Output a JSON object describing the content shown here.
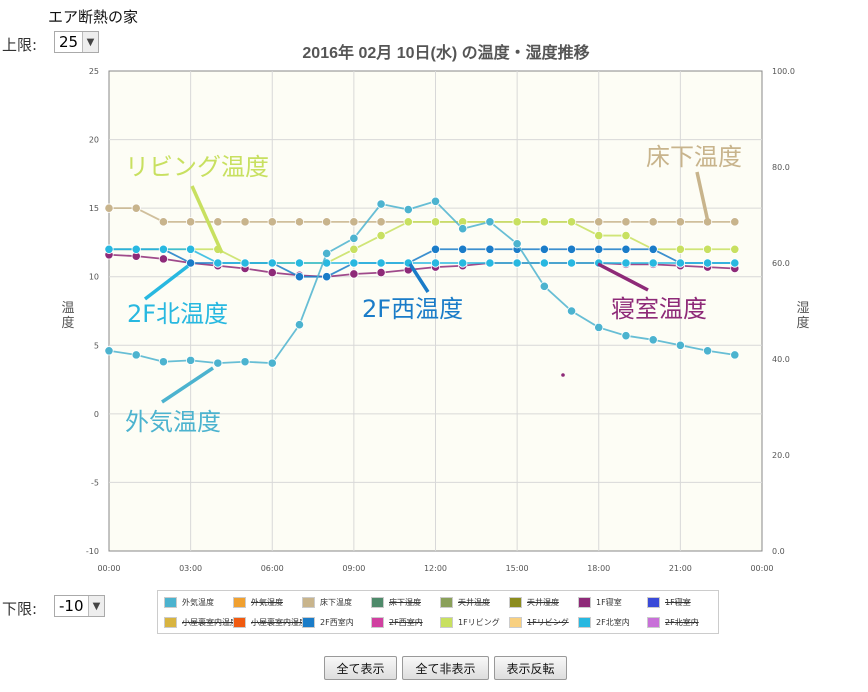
{
  "page_title": "エア断熱の家",
  "upper_limit": {
    "label": "上限:",
    "value": "25"
  },
  "lower_limit": {
    "label": "下限:",
    "value": "-10"
  },
  "buttons": {
    "show_all": "全て表示",
    "hide_all": "全て非表示",
    "invert": "表示反転"
  },
  "legend": [
    {
      "label": "外気温度",
      "color": "#4cb3cf",
      "visible": true
    },
    {
      "label": "外気湿度",
      "color": "#f0a030",
      "visible": false
    },
    {
      "label": "床下温度",
      "color": "#c8b48c",
      "visible": true
    },
    {
      "label": "床下湿度",
      "color": "#4e8a6a",
      "visible": false
    },
    {
      "label": "天井温度",
      "color": "#8aa05a",
      "visible": false
    },
    {
      "label": "天井湿度",
      "color": "#8c8c1e",
      "visible": false
    },
    {
      "label": "1F寝室",
      "color": "#8e2a78",
      "visible": true
    },
    {
      "label": "1F寝室",
      "color": "#3a4ad8",
      "visible": false
    },
    {
      "label": "小屋裏室内温度",
      "color": "#d8b440",
      "visible": false
    },
    {
      "label": "小屋裏室内湿度",
      "color": "#f05a10",
      "visible": false
    },
    {
      "label": "2F西室内",
      "color": "#1a7cc8",
      "visible": true
    },
    {
      "label": "2F西室内",
      "color": "#d040a0",
      "visible": false
    },
    {
      "label": "1Fリビング",
      "color": "#c8e060",
      "visible": true
    },
    {
      "label": "1Fリビング",
      "color": "#f8d080",
      "visible": false
    },
    {
      "label": "2F北室内",
      "color": "#28b8e0",
      "visible": true
    },
    {
      "label": "2F北室内",
      "color": "#c870d8",
      "visible": false
    }
  ],
  "annotations": [
    {
      "text": "リビング温度",
      "color": "#c8e060"
    },
    {
      "text": "床下温度",
      "color": "#c8b48c"
    },
    {
      "text": "2F北温度",
      "color": "#28b8e0"
    },
    {
      "text": "2F西温度",
      "color": "#1a7cc8"
    },
    {
      "text": "寝室温度",
      "color": "#8e2a78"
    },
    {
      "text": "外気温度",
      "color": "#4cb3cf"
    }
  ],
  "chart_data": {
    "type": "line",
    "title": "2016年 02月 10日(水) の温度・湿度推移",
    "ylabel": "温度",
    "y2label": "湿度",
    "ylim": [
      -10,
      25
    ],
    "y2lim": [
      0,
      100
    ],
    "yticks": [
      "25",
      "20",
      "15",
      "10",
      "5",
      "0",
      "-5",
      "-10"
    ],
    "y2ticks": [
      "100.0",
      "80.0",
      "60.0",
      "40.0",
      "20.0",
      "0.0"
    ],
    "xticks": [
      "00:00",
      "03:00",
      "06:00",
      "09:00",
      "12:00",
      "15:00",
      "18:00",
      "21:00",
      "00:00"
    ],
    "xlim": [
      0,
      24
    ],
    "grid": true,
    "series": [
      {
        "name": "床下温度",
        "color": "#c8b48c",
        "x": [
          0,
          1,
          2,
          3,
          4,
          5,
          6,
          7,
          8,
          9,
          10,
          11,
          12,
          13,
          14,
          15,
          16,
          17,
          18,
          19,
          20,
          21,
          22,
          23
        ],
        "values": [
          15,
          15,
          14,
          14,
          14,
          14,
          14,
          14,
          14,
          14,
          14,
          14,
          14,
          14,
          14,
          14,
          14,
          14,
          14,
          14,
          14,
          14,
          14,
          14
        ]
      },
      {
        "name": "1Fリビング",
        "color": "#c8e060",
        "x": [
          0,
          1,
          2,
          3,
          4,
          5,
          6,
          7,
          8,
          9,
          10,
          11,
          12,
          13,
          14,
          15,
          16,
          17,
          18,
          19,
          20,
          21,
          22,
          23
        ],
        "values": [
          12,
          12,
          12,
          12,
          12,
          11,
          11,
          11,
          11,
          12,
          13,
          14,
          14,
          14,
          14,
          14,
          14,
          14,
          13,
          13,
          12,
          12,
          12,
          12
        ]
      },
      {
        "name": "1F寝室",
        "color": "#8e2a78",
        "x": [
          0,
          1,
          2,
          3,
          4,
          5,
          6,
          7,
          8,
          9,
          10,
          11,
          12,
          13,
          14,
          15,
          16,
          17,
          18,
          19,
          20,
          21,
          22,
          23
        ],
        "values": [
          11.6,
          11.5,
          11.3,
          11,
          10.8,
          10.6,
          10.3,
          10.1,
          10.0,
          10.2,
          10.3,
          10.5,
          10.7,
          10.8,
          11,
          11,
          11,
          11,
          11,
          10.9,
          10.9,
          10.8,
          10.7,
          10.6
        ]
      },
      {
        "name": "2F西室内",
        "color": "#1a7cc8",
        "x": [
          0,
          1,
          2,
          3,
          4,
          5,
          6,
          7,
          8,
          9,
          10,
          11,
          12,
          13,
          14,
          15,
          16,
          17,
          18,
          19,
          20,
          21,
          22,
          23
        ],
        "values": [
          12,
          12,
          12,
          11,
          11,
          11,
          11,
          10,
          10,
          11,
          11,
          11,
          12,
          12,
          12,
          12,
          12,
          12,
          12,
          12,
          12,
          11,
          11,
          11
        ]
      },
      {
        "name": "2F北室内",
        "color": "#28b8e0",
        "x": [
          0,
          1,
          2,
          3,
          4,
          5,
          6,
          7,
          8,
          9,
          10,
          11,
          12,
          13,
          14,
          15,
          16,
          17,
          18,
          19,
          20,
          21,
          22,
          23
        ],
        "values": [
          12,
          12,
          12,
          12,
          11,
          11,
          11,
          11,
          11,
          11,
          11,
          11,
          11,
          11,
          11,
          11,
          11,
          11,
          11,
          11,
          11,
          11,
          11,
          11
        ]
      },
      {
        "name": "外気温度",
        "color": "#4cb3cf",
        "x": [
          0,
          1,
          2,
          3,
          4,
          5,
          6,
          7,
          8,
          9,
          10,
          11,
          12,
          13,
          14,
          15,
          16,
          17,
          18,
          19,
          20,
          21,
          22,
          23
        ],
        "values": [
          4.6,
          4.3,
          3.8,
          3.9,
          3.7,
          3.8,
          3.7,
          6.5,
          11.7,
          12.8,
          15.3,
          14.9,
          15.5,
          13.5,
          14.0,
          12.4,
          9.3,
          7.5,
          6.3,
          5.7,
          5.4,
          5.0,
          4.6,
          4.3
        ]
      }
    ]
  }
}
